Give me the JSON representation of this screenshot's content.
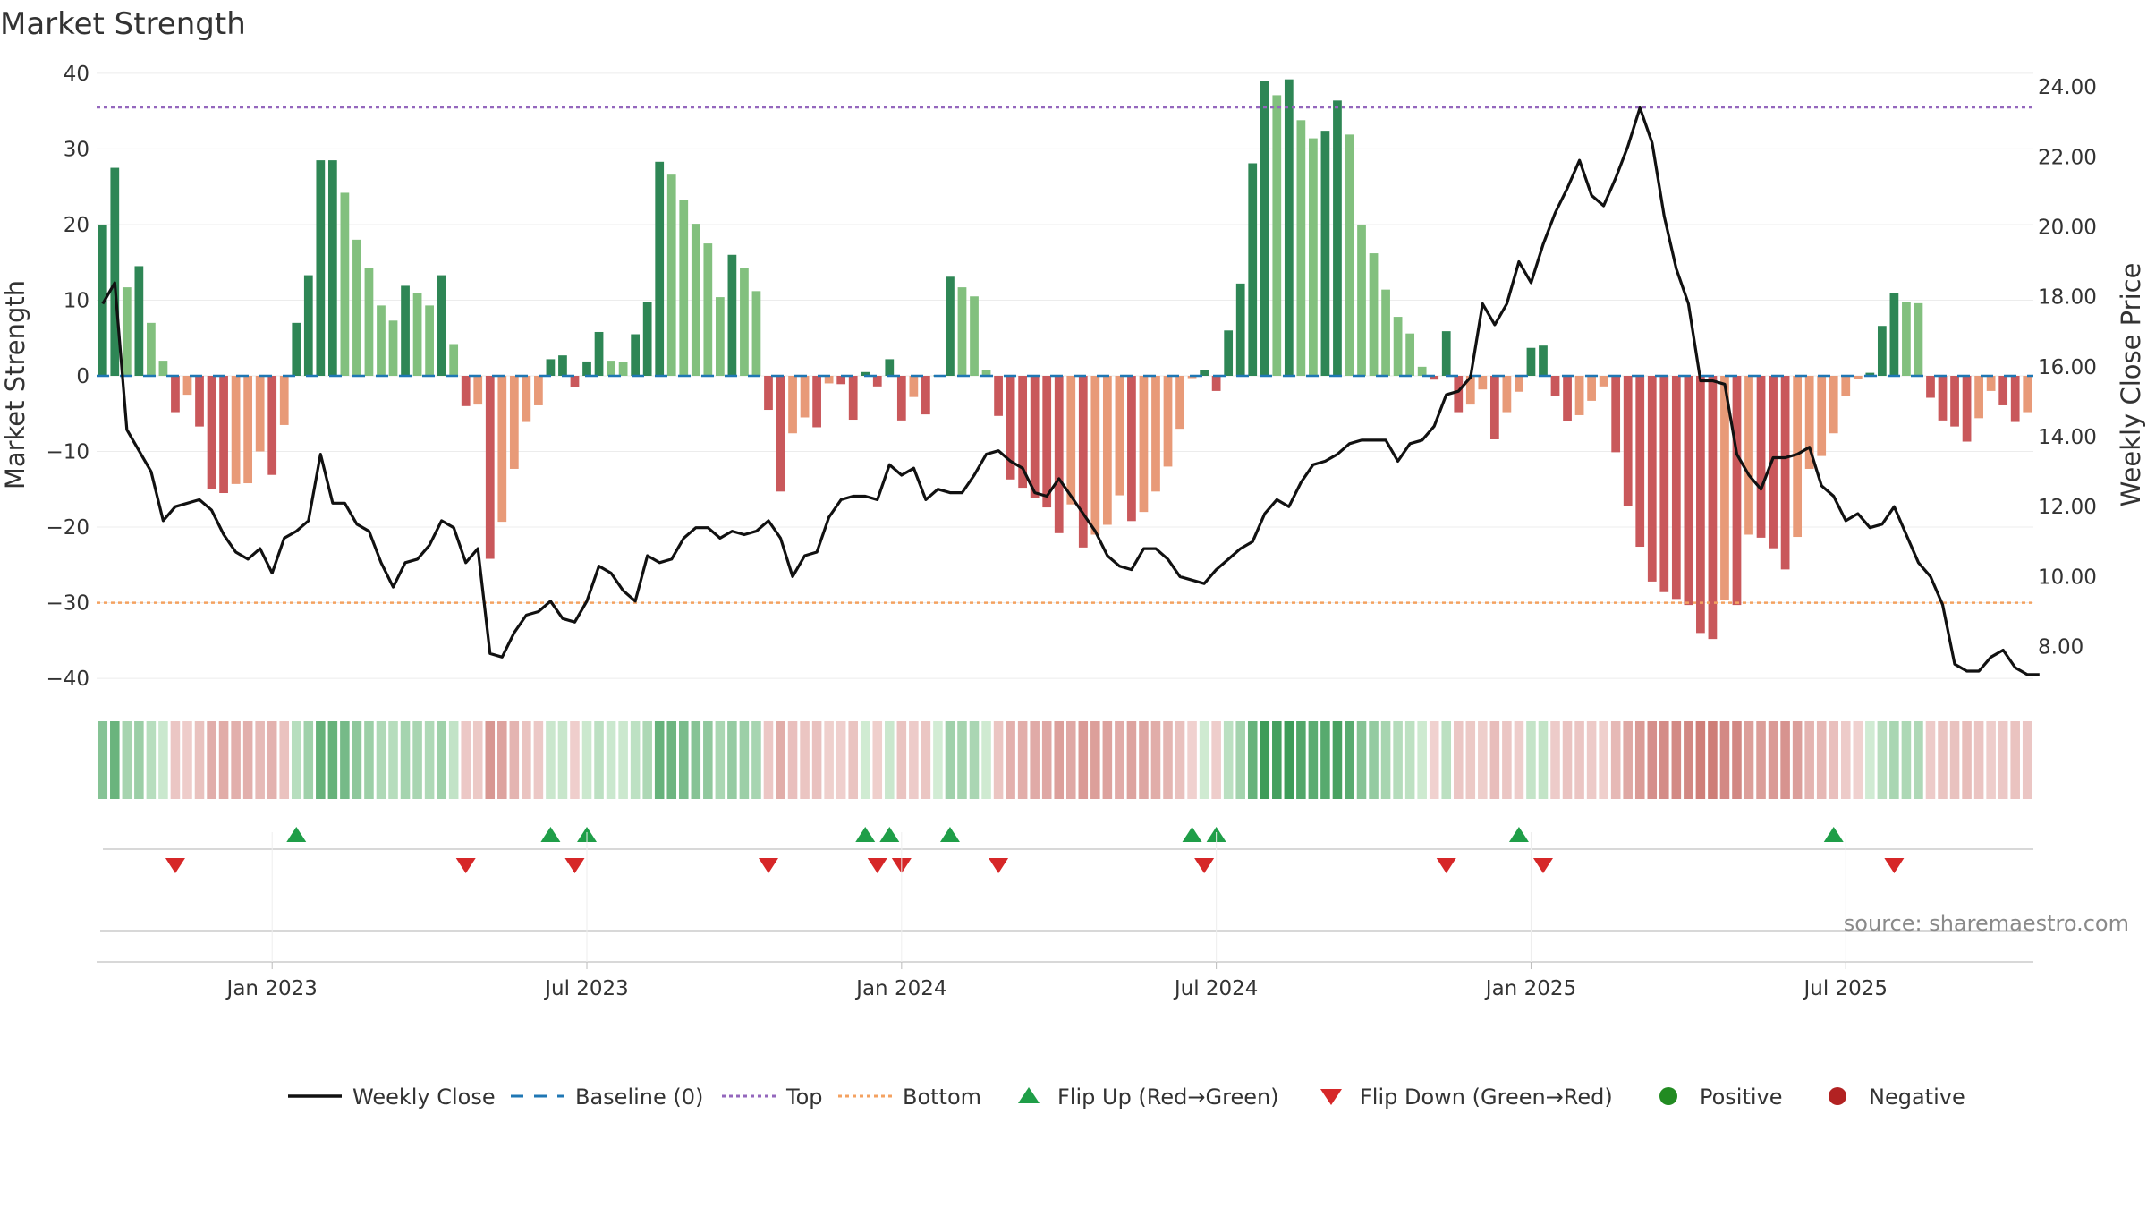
{
  "colors": {
    "pos_dark": "#2e8655",
    "pos_light": "#82c07e",
    "neg_dark": "#c9585b",
    "neg_light": "#e89a78",
    "line": "#111111",
    "baseline": "#1f77b4",
    "top": "#9467bd",
    "bottom": "#f4a261",
    "flip_up": "#1f9e48",
    "flip_down": "#d62728",
    "positive_dot": "#228b22",
    "negative_dot": "#b22222"
  },
  "chart_data": {
    "type": "bar+line",
    "title": "Market Strength",
    "ylabel_left": "Market Strength",
    "ylabel_right": "Weekly Close Price",
    "ylim_left": [
      -42,
      42
    ],
    "yticks_left": [
      40,
      30,
      20,
      10,
      0,
      -10,
      -20,
      -30,
      -40
    ],
    "ylim_right": [
      6.66,
      24.82
    ],
    "yticks_right": [
      "24.00",
      "22.00",
      "20.00",
      "18.00",
      "16.00",
      "14.00",
      "12.00",
      "10.00",
      "8.00"
    ],
    "x_tick_labels": [
      "Jan 2023",
      "Jul 2023",
      "Jan 2024",
      "Jul 2024",
      "Jan 2025",
      "Jul 2025"
    ],
    "x_tick_weeks": [
      14.5,
      40.5,
      66.5,
      92.5,
      118.5,
      144.5
    ],
    "top_level": 35.5,
    "bottom_level": -30,
    "strength": [
      20,
      27.5,
      11.7,
      14.5,
      7,
      2,
      -4.8,
      -2.5,
      -6.7,
      -15,
      -15.5,
      -14.3,
      -14.2,
      -10,
      -13.1,
      -6.5,
      7,
      13.3,
      28.5,
      28.5,
      24.2,
      18,
      14.2,
      9.3,
      7.3,
      11.9,
      11,
      9.3,
      13.3,
      4.2,
      -4,
      -3.8,
      -24.2,
      -19.3,
      -12.3,
      -6.1,
      -3.9,
      2.2,
      2.7,
      -1.5,
      1.9,
      5.8,
      2,
      1.8,
      5.5,
      9.8,
      28.3,
      26.6,
      23.2,
      20.1,
      17.5,
      10.4,
      16,
      14.2,
      11.2,
      -4.5,
      -15.3,
      -7.6,
      -5.5,
      -6.8,
      -1,
      -1.1,
      -5.8,
      0.5,
      -1.4,
      2.2,
      -5.9,
      -2.8,
      -5.1,
      0.1,
      13.1,
      11.7,
      10.5,
      0.8,
      -5.3,
      -13.7,
      -14.8,
      -16.2,
      -17.4,
      -20.8,
      -17,
      -22.7,
      -21,
      -19.7,
      -15.8,
      -19.2,
      -18,
      -15.3,
      -12,
      -7,
      -0.3,
      0.8,
      -2,
      6,
      12.2,
      28.1,
      39,
      37.1,
      39.2,
      33.8,
      31.4,
      32.4,
      36.4,
      31.9,
      20,
      16.2,
      11.4,
      7.8,
      5.6,
      1.2,
      -0.5,
      5.9,
      -4.8,
      -3.8,
      -1.8,
      -8.4,
      -4.8,
      -2.1,
      3.7,
      4,
      -2.7,
      -6,
      -5.2,
      -3.3,
      -1.4,
      -10.1,
      -17.2,
      -22.6,
      -27.2,
      -28.6,
      -29.5,
      -30.3,
      -34,
      -34.8,
      -29.7,
      -30.3,
      -21,
      -21.4,
      -22.8,
      -25.6,
      -21.3,
      -12.3,
      -10.6,
      -7.6,
      -2.7,
      -0.4,
      0.4,
      6.6,
      10.9,
      9.8,
      9.6,
      -2.9,
      -5.9,
      -6.7,
      -8.7,
      -5.6,
      -2,
      -3.9,
      -6.1,
      -4.8
    ],
    "weekly_close": [
      17.8,
      18.4,
      14.2,
      13.6,
      13.0,
      11.6,
      12.0,
      12.1,
      12.2,
      11.9,
      11.2,
      10.7,
      10.5,
      10.8,
      10.1,
      11.1,
      11.3,
      11.6,
      13.5,
      12.1,
      12.1,
      11.5,
      11.3,
      10.4,
      9.7,
      10.4,
      10.5,
      10.9,
      11.6,
      11.4,
      10.4,
      10.8,
      7.8,
      7.7,
      8.4,
      8.9,
      9.0,
      9.3,
      8.8,
      8.7,
      9.3,
      10.3,
      10.1,
      9.6,
      9.3,
      10.6,
      10.4,
      10.5,
      11.1,
      11.4,
      11.4,
      11.1,
      11.3,
      11.2,
      11.3,
      11.6,
      11.1,
      10.0,
      10.6,
      10.7,
      11.7,
      12.2,
      12.3,
      12.3,
      12.2,
      13.2,
      12.9,
      13.1,
      12.2,
      12.5,
      12.4,
      12.4,
      12.9,
      13.5,
      13.6,
      13.3,
      13.1,
      12.4,
      12.3,
      12.8,
      12.3,
      11.8,
      11.3,
      10.6,
      10.3,
      10.2,
      10.8,
      10.8,
      10.5,
      10.0,
      9.9,
      9.8,
      10.2,
      10.5,
      10.8,
      11.0,
      11.8,
      12.2,
      12.0,
      12.7,
      13.2,
      13.3,
      13.5,
      13.8,
      13.9,
      13.9,
      13.9,
      13.3,
      13.8,
      13.9,
      14.3,
      15.2,
      15.3,
      15.7,
      17.8,
      17.2,
      17.8,
      19.0,
      18.4,
      19.5,
      20.4,
      21.1,
      21.9,
      20.9,
      20.6,
      21.4,
      22.3,
      23.4,
      22.4,
      20.3,
      18.8,
      17.8,
      15.6,
      15.6,
      15.5,
      13.5,
      12.9,
      12.5,
      13.4,
      13.4,
      13.5,
      13.7,
      12.6,
      12.3,
      11.6,
      11.8,
      11.4,
      11.5,
      12.0,
      11.2,
      10.4,
      10.0,
      9.2,
      7.5,
      7.3,
      7.3,
      7.7,
      7.9,
      7.4,
      7.2,
      7.2
    ],
    "flip_up_weeks": [
      16,
      37,
      40,
      63,
      65,
      70,
      90,
      92,
      117,
      143
    ],
    "flip_down_weeks": [
      6,
      30,
      39,
      55,
      64,
      66,
      74,
      91,
      111,
      119,
      148
    ],
    "legend": [
      "Weekly Close",
      "Baseline (0)",
      "Top",
      "Bottom",
      "Flip Up (Red→Green)",
      "Flip Down (Green→Red)",
      "Positive",
      "Negative"
    ]
  },
  "source_text": "source: sharemaestro.com"
}
